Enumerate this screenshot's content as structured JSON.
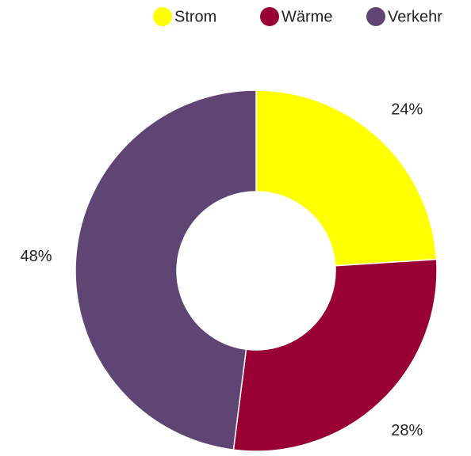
{
  "chart_data": {
    "type": "donut",
    "categories": [
      "Strom",
      "Wärme",
      "Verkehr"
    ],
    "values": [
      24,
      28,
      48
    ],
    "value_labels": [
      "24%",
      "28%",
      "48%"
    ],
    "colors": [
      "#ffff00",
      "#990033",
      "#5f4573"
    ],
    "legend": "top-right"
  }
}
